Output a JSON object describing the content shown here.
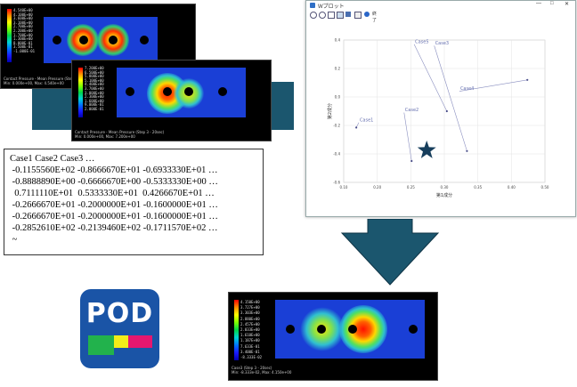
{
  "colors": {
    "arrow": "#1b566e",
    "field_blue": "#1a3fd6",
    "pod_blue": "#1a54a6",
    "pod_green": "#22b24c",
    "pod_yellow": "#f3ec19",
    "pod_pink": "#e5176f"
  },
  "panel_top_left": {
    "cbar": [
      "4.540E+00",
      "4.100E+00",
      "3.600E+00",
      "3.100E+00",
      "2.700E+00",
      "2.200E+00",
      "1.700E+00",
      "1.300E+00",
      "8.000E-01",
      "3.500E-01",
      "-1.000E-01"
    ],
    "caption": [
      "Contact Pressure - Mean Pressure (Step 3 - 1",
      "Min: 0.000e+00, Max: 4.540e+00"
    ]
  },
  "panel_top_mid": {
    "cbar": [
      "7.200E+00",
      "6.500E+00",
      "5.800E+00",
      "5.100E+00",
      "4.400E+00",
      "3.700E+00",
      "3.000E+00",
      "2.300E+00",
      "1.600E+00",
      "9.000E-01",
      "2.000E-01"
    ],
    "caption": [
      "Contact Pressure - Mean Pressure (Step 3 - 20sec)",
      "Min: 0.000e+00, Max: 7.200e+00"
    ]
  },
  "panel_result": {
    "cbar": [
      "4.150E+00",
      "3.727E+00",
      "3.303E+00",
      "2.880E+00",
      "2.457E+00",
      "2.033E+00",
      "1.610E+00",
      "1.187E+00",
      "7.633E-01",
      "3.400E-01",
      "-8.333E-02"
    ],
    "caption": [
      "Case3 (Step 3 - 20sec)",
      "Min: -8.333e-02, Max: 4.150e+00"
    ]
  },
  "text_box": {
    "lines": [
      "Case1 Case2 Case3 …",
      " -0.1155560E+02 -0.8666670E+01 -0.6933330E+01 …",
      " -0.8888890E+00 -0.6666670E+00 -0.5333330E+00 …",
      "  0.7111110E+01  0.5333330E+01  0.4266670E+01 …",
      " -0.2666670E+01 -0.2000000E+01 -0.1600000E+01 …",
      " -0.2666670E+01 -0.2000000E+01 -0.1600000E+01 …",
      " -0.2852610E+02 -0.2139460E+02 -0.1711570E+02 …",
      " ~"
    ]
  },
  "window": {
    "title": "Wプロット",
    "toolbar_label": "終了",
    "controls": [
      "—",
      "□",
      "✕"
    ]
  },
  "chart_data": {
    "type": "scatter",
    "xlabel": "第1成分",
    "ylabel": "第2成分",
    "xlim": [
      0.1,
      0.5
    ],
    "ylim": [
      -0.6,
      0.4
    ],
    "xticks": [
      "0.10",
      "0.20",
      "0.25",
      "0.30",
      "0.35",
      "0.40",
      "0.50"
    ],
    "yticks": [
      "0.4",
      "0.2",
      "0.0",
      "-0.2",
      "-0.4",
      "-0.6"
    ],
    "points": [
      {
        "label": "Case1",
        "x": 0.13,
        "y": -0.18,
        "lx": 0.125,
        "ly": -0.215
      },
      {
        "label": "Case2",
        "x": 0.22,
        "y": -0.11,
        "lx": 0.235,
        "ly": -0.45
      },
      {
        "label": "Case3",
        "x": 0.28,
        "y": 0.36,
        "lx": 0.345,
        "ly": -0.38
      },
      {
        "label": "Case4",
        "x": 0.33,
        "y": 0.04,
        "lx": 0.465,
        "ly": 0.12
      },
      {
        "label": "Case5",
        "x": 0.24,
        "y": 0.37,
        "lx": 0.305,
        "ly": -0.1
      }
    ],
    "star": {
      "x": 0.265,
      "y": -0.375
    }
  },
  "pod_logo": {
    "text": "POD"
  }
}
